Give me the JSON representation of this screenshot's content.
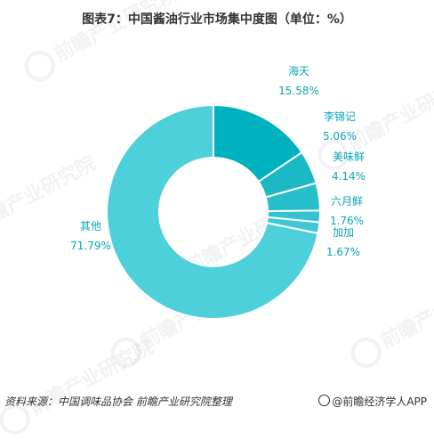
{
  "title": "图表7：中国酱油行业市场集中度图（单位：%）",
  "chart_data": {
    "type": "pie",
    "variant": "donut",
    "title": "图表7：中国酱油行业市场集中度图（单位：%）",
    "slices": [
      {
        "name": "海天",
        "value": 15.58,
        "value_label": "15.58%",
        "color": "#00b2bf"
      },
      {
        "name": "李锦记",
        "value": 5.06,
        "value_label": "5.06%",
        "color": "#1ab9c5"
      },
      {
        "name": "美味鲜",
        "value": 4.14,
        "value_label": "4.14%",
        "color": "#26becb"
      },
      {
        "name": "六月鲜",
        "value": 1.76,
        "value_label": "1.76%",
        "color": "#33c3cf"
      },
      {
        "name": "加加",
        "value": 1.67,
        "value_label": "1.67%",
        "color": "#3fc8d3"
      },
      {
        "name": "其他",
        "value": 71.79,
        "value_label": "71.79%",
        "color": "#4dd0d9"
      }
    ],
    "label_color": "#0aa7b5"
  },
  "watermark": {
    "text": "前瞻产业研究院"
  },
  "footer": {
    "source": "资料来源：中国调味品协会 前瞻产业研究院整理",
    "brand": "@前瞻经济学人APP"
  }
}
